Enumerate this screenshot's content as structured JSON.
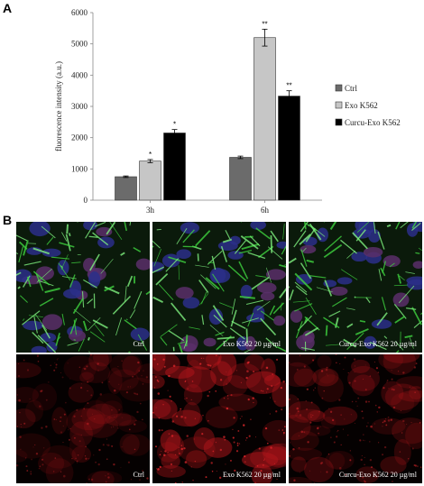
{
  "panels": {
    "a_letter": "A",
    "b_letter": "B"
  },
  "chart_data": {
    "type": "bar",
    "categories": [
      "3h",
      "6h"
    ],
    "ylabel": "fluorescence intensity (a.u.)",
    "ylim": [
      0,
      6000
    ],
    "yticks": [
      "0",
      "1000",
      "2000",
      "3000",
      "4000",
      "5000",
      "6000"
    ],
    "legend_position": "right",
    "series": [
      {
        "name": "Ctrl",
        "color": "#6b6b6b",
        "values": [
          750,
          1370
        ],
        "errors": [
          25,
          40
        ],
        "significance": [
          "",
          ""
        ]
      },
      {
        "name": "Exo K562",
        "color": "#c6c6c6",
        "values": [
          1250,
          5200
        ],
        "errors": [
          50,
          270
        ],
        "significance": [
          "*",
          "**"
        ]
      },
      {
        "name": "Curcu-Exo K562",
        "color": "#000000",
        "values": [
          2150,
          3330
        ],
        "errors": [
          110,
          170
        ],
        "significance": [
          "*",
          "**"
        ]
      }
    ]
  },
  "micrographs": {
    "top_row": [
      {
        "label": "Ctrl",
        "stain": "green"
      },
      {
        "label": "Exo K562 20 µg/ml",
        "stain": "green"
      },
      {
        "label": "Curcu-Exo K562 20 µg/ml",
        "stain": "green"
      }
    ],
    "bottom_row": [
      {
        "label": "Ctrl",
        "stain": "red-dim"
      },
      {
        "label": "Exo K562 20 µg/ml",
        "stain": "red-bright"
      },
      {
        "label": "Curcu-Exo K562 20 µg/ml",
        "stain": "red-mid"
      }
    ]
  }
}
